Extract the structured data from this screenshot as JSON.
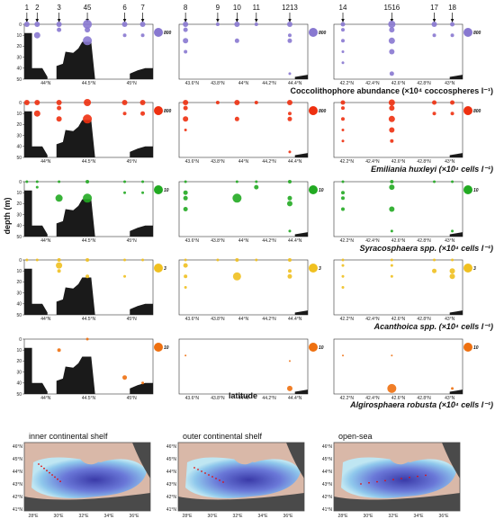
{
  "y_axis_label": "depth (m)",
  "x_axis_label": "latitude",
  "map_titles": [
    "inner continental shelf",
    "outer continental shelf",
    "open-sea"
  ],
  "map_lat_ticks": [
    "46°N",
    "45°N",
    "44°N",
    "43°N",
    "42°N",
    "41°N"
  ],
  "map_lon_ticks": [
    "28°E",
    "30°E",
    "32°E",
    "34°E",
    "36°E"
  ],
  "chart_data": {
    "type": "scatter",
    "depth_ticks": [
      "0",
      "10",
      "20",
      "30",
      "40",
      "50"
    ],
    "ylim": [
      50,
      0
    ],
    "transects": [
      {
        "id": "inner",
        "lat_ticks": [
          "44°N",
          "44.5°N",
          "45°N"
        ],
        "stations": [
          {
            "label": "1",
            "x": 0.02
          },
          {
            "label": "2",
            "x": 0.1
          },
          {
            "label": "3",
            "x": 0.27
          },
          {
            "label": "45",
            "x": 0.49
          },
          {
            "label": "6",
            "x": 0.78
          },
          {
            "label": "7",
            "x": 0.92
          }
        ]
      },
      {
        "id": "outer",
        "lat_ticks": [
          "43.6°N",
          "43.8°N",
          "44°N",
          "44.2°N",
          "44.4°N"
        ],
        "stations": [
          {
            "label": "8",
            "x": 0.05
          },
          {
            "label": "9",
            "x": 0.3
          },
          {
            "label": "10",
            "x": 0.45
          },
          {
            "label": "11",
            "x": 0.6
          },
          {
            "label": "1213",
            "x": 0.86
          }
        ]
      },
      {
        "id": "open",
        "lat_ticks": [
          "42.2°N",
          "42.4°N",
          "42.6°N",
          "42.8°N",
          "43°N"
        ],
        "stations": [
          {
            "label": "14",
            "x": 0.07
          },
          {
            "label": "1516",
            "x": 0.45
          },
          {
            "label": "17",
            "x": 0.78
          },
          {
            "label": "18",
            "x": 0.92
          }
        ]
      }
    ],
    "panels": [
      {
        "caption": "Coccolithophore abundance (×10⁴ coccospheres l⁻¹)",
        "color": "#8878d0",
        "legend_value": "800",
        "series": [
          {
            "transect": "inner",
            "points": [
              [
                0.02,
                0,
                3
              ],
              [
                0.1,
                0,
                3
              ],
              [
                0.27,
                0,
                3
              ],
              [
                0.49,
                0,
                5
              ],
              [
                0.78,
                0,
                3
              ],
              [
                0.92,
                0,
                3
              ],
              [
                0.27,
                5,
                2.5
              ],
              [
                0.49,
                5,
                3
              ],
              [
                0.1,
                10,
                3.5
              ],
              [
                0.49,
                15,
                5
              ],
              [
                0.78,
                10,
                2
              ],
              [
                0.92,
                10,
                2
              ]
            ]
          },
          {
            "transect": "outer",
            "points": [
              [
                0.05,
                0,
                3
              ],
              [
                0.3,
                0,
                2
              ],
              [
                0.45,
                0,
                3
              ],
              [
                0.6,
                0,
                2
              ],
              [
                0.86,
                0,
                3
              ],
              [
                0.05,
                5,
                2.5
              ],
              [
                0.05,
                15,
                3
              ],
              [
                0.45,
                15,
                2.5
              ],
              [
                0.86,
                15,
                2.5
              ],
              [
                0.86,
                10,
                2
              ],
              [
                0.05,
                25,
                2
              ],
              [
                0.86,
                45,
                1.5
              ]
            ]
          },
          {
            "transect": "open",
            "points": [
              [
                0.07,
                0,
                2.5
              ],
              [
                0.45,
                0,
                4
              ],
              [
                0.78,
                0,
                3
              ],
              [
                0.92,
                0,
                2.5
              ],
              [
                0.07,
                5,
                2
              ],
              [
                0.45,
                5,
                3
              ],
              [
                0.45,
                15,
                3.5
              ],
              [
                0.78,
                10,
                2
              ],
              [
                0.92,
                10,
                2
              ],
              [
                0.07,
                15,
                2
              ],
              [
                0.07,
                25,
                1.5
              ],
              [
                0.45,
                25,
                3
              ],
              [
                0.07,
                35,
                1.5
              ],
              [
                0.45,
                45,
                2.5
              ]
            ]
          }
        ]
      },
      {
        "caption": "Emiliania huxleyi (×10⁴ cells l⁻¹)",
        "color": "#ee3010",
        "legend_value": "800",
        "series": [
          {
            "transect": "inner",
            "points": [
              [
                0.02,
                0,
                3
              ],
              [
                0.1,
                0,
                3
              ],
              [
                0.27,
                0,
                3
              ],
              [
                0.49,
                0,
                4
              ],
              [
                0.78,
                0,
                3
              ],
              [
                0.92,
                0,
                3
              ],
              [
                0.1,
                10,
                3.5
              ],
              [
                0.27,
                5,
                2.5
              ],
              [
                0.49,
                15,
                5
              ],
              [
                0.78,
                10,
                2
              ],
              [
                0.92,
                10,
                2.5
              ],
              [
                0.27,
                15,
                3
              ]
            ]
          },
          {
            "transect": "outer",
            "points": [
              [
                0.05,
                0,
                3
              ],
              [
                0.3,
                0,
                2
              ],
              [
                0.45,
                0,
                3
              ],
              [
                0.6,
                0,
                2
              ],
              [
                0.86,
                0,
                3
              ],
              [
                0.05,
                5,
                2.5
              ],
              [
                0.05,
                15,
                3
              ],
              [
                0.45,
                15,
                2.5
              ],
              [
                0.86,
                15,
                2.5
              ],
              [
                0.86,
                10,
                2
              ],
              [
                0.05,
                25,
                1.5
              ],
              [
                0.86,
                45,
                1.5
              ]
            ]
          },
          {
            "transect": "open",
            "points": [
              [
                0.07,
                0,
                2.5
              ],
              [
                0.45,
                0,
                3.5
              ],
              [
                0.78,
                0,
                2.5
              ],
              [
                0.92,
                0,
                2.5
              ],
              [
                0.07,
                5,
                2
              ],
              [
                0.45,
                5,
                3
              ],
              [
                0.45,
                15,
                3.5
              ],
              [
                0.78,
                10,
                2
              ],
              [
                0.92,
                10,
                2
              ],
              [
                0.07,
                15,
                2
              ],
              [
                0.07,
                25,
                1.5
              ],
              [
                0.45,
                25,
                3
              ],
              [
                0.07,
                35,
                1.5
              ],
              [
                0.45,
                35,
                2
              ]
            ]
          }
        ]
      },
      {
        "caption": "Syracosphaera spp. (×10⁴ cells l⁻¹)",
        "color": "#22aa22",
        "legend_value": "10",
        "series": [
          {
            "transect": "inner",
            "points": [
              [
                0.02,
                0,
                1.5
              ],
              [
                0.1,
                0,
                1.5
              ],
              [
                0.27,
                0,
                1.5
              ],
              [
                0.49,
                0,
                2
              ],
              [
                0.78,
                0,
                1.5
              ],
              [
                0.92,
                0,
                1.5
              ],
              [
                0.27,
                15,
                4
              ],
              [
                0.49,
                15,
                5
              ],
              [
                0.1,
                5,
                1.5
              ],
              [
                0.78,
                10,
                1.5
              ],
              [
                0.92,
                10,
                1.5
              ]
            ]
          },
          {
            "transect": "outer",
            "points": [
              [
                0.05,
                0,
                1.5
              ],
              [
                0.45,
                0,
                1.5
              ],
              [
                0.6,
                0,
                1.5
              ],
              [
                0.86,
                0,
                2
              ],
              [
                0.05,
                10,
                2.5
              ],
              [
                0.05,
                15,
                2.5
              ],
              [
                0.05,
                25,
                2.5
              ],
              [
                0.45,
                15,
                5
              ],
              [
                0.6,
                5,
                2.5
              ],
              [
                0.86,
                15,
                2.5
              ],
              [
                0.86,
                20,
                3
              ],
              [
                0.86,
                45,
                1.5
              ]
            ]
          },
          {
            "transect": "open",
            "points": [
              [
                0.07,
                0,
                1.5
              ],
              [
                0.45,
                0,
                2
              ],
              [
                0.78,
                0,
                1.5
              ],
              [
                0.92,
                0,
                1.5
              ],
              [
                0.07,
                10,
                2
              ],
              [
                0.07,
                15,
                2
              ],
              [
                0.07,
                25,
                2
              ],
              [
                0.45,
                5,
                3
              ],
              [
                0.45,
                25,
                3
              ],
              [
                0.45,
                45,
                1.5
              ],
              [
                0.92,
                45,
                1.5
              ]
            ]
          }
        ]
      },
      {
        "caption": "Acanthoica spp. (×10⁴ cells l⁻¹)",
        "color": "#f0c020",
        "legend_value": "3",
        "series": [
          {
            "transect": "inner",
            "points": [
              [
                0.02,
                0,
                1.5
              ],
              [
                0.1,
                0,
                1.5
              ],
              [
                0.27,
                0,
                2
              ],
              [
                0.49,
                0,
                2
              ],
              [
                0.78,
                0,
                1.5
              ],
              [
                0.92,
                0,
                1.5
              ],
              [
                0.27,
                5,
                3.5
              ],
              [
                0.27,
                10,
                2
              ],
              [
                0.49,
                15,
                2
              ],
              [
                0.78,
                15,
                1.5
              ]
            ]
          },
          {
            "transect": "outer",
            "points": [
              [
                0.05,
                0,
                1.5
              ],
              [
                0.3,
                0,
                1.5
              ],
              [
                0.45,
                0,
                2
              ],
              [
                0.6,
                0,
                1.5
              ],
              [
                0.86,
                0,
                2
              ],
              [
                0.05,
                5,
                2.5
              ],
              [
                0.05,
                15,
                2
              ],
              [
                0.45,
                15,
                4.5
              ],
              [
                0.86,
                15,
                2.5
              ],
              [
                0.86,
                10,
                2
              ],
              [
                0.05,
                25,
                1.5
              ]
            ]
          },
          {
            "transect": "open",
            "points": [
              [
                0.07,
                0,
                1.5
              ],
              [
                0.45,
                0,
                1.5
              ],
              [
                0.78,
                0,
                1.5
              ],
              [
                0.92,
                0,
                1.5
              ],
              [
                0.07,
                5,
                1.5
              ],
              [
                0.45,
                5,
                1.5
              ],
              [
                0.78,
                10,
                2.5
              ],
              [
                0.92,
                10,
                3
              ],
              [
                0.92,
                15,
                3
              ],
              [
                0.07,
                15,
                1.5
              ],
              [
                0.45,
                15,
                1.5
              ],
              [
                0.07,
                25,
                1.5
              ]
            ]
          }
        ]
      },
      {
        "caption": "Algirosphaera robusta (×10⁴ cells l⁻¹)",
        "color": "#ee7010",
        "legend_value": "10",
        "series": [
          {
            "transect": "inner",
            "points": [
              [
                0.27,
                10,
                2
              ],
              [
                0.49,
                0,
                1.5
              ],
              [
                0.78,
                35,
                2.5
              ],
              [
                0.92,
                40,
                1.5
              ]
            ]
          },
          {
            "transect": "outer",
            "points": [
              [
                0.86,
                45,
                3
              ],
              [
                0.05,
                15,
                1
              ],
              [
                0.86,
                20,
                1
              ]
            ]
          },
          {
            "transect": "open",
            "points": [
              [
                0.45,
                45,
                5
              ],
              [
                0.07,
                15,
                1
              ],
              [
                0.45,
                15,
                1
              ],
              [
                0.92,
                45,
                1.5
              ]
            ]
          }
        ]
      }
    ]
  }
}
